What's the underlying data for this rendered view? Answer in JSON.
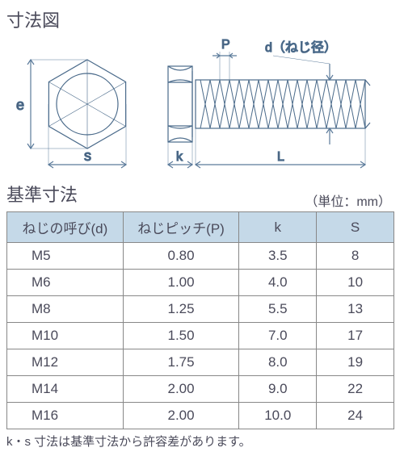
{
  "titles": {
    "diagram": "寸法図",
    "table": "基準寸法",
    "unit": "（単位：mm）",
    "footnote": "k・s 寸法は基準寸法から許容差があります。"
  },
  "diagram": {
    "labels": {
      "e": "e",
      "s": "s",
      "k": "k",
      "L": "L",
      "P": "P",
      "d": "d（ねじ径）"
    },
    "style": {
      "stroke": "#4a6a8a",
      "stroke_width": 1.2,
      "dim_stroke": "#5a7a9a",
      "fill": "none"
    }
  },
  "table": {
    "columns": [
      "ねじの呼び(d)",
      "ねじピッチ(P)",
      "k",
      "S"
    ],
    "rows": [
      [
        "M5",
        "0.80",
        "3.5",
        "8"
      ],
      [
        "M6",
        "1.00",
        "4.0",
        "10"
      ],
      [
        "M8",
        "1.25",
        "5.5",
        "13"
      ],
      [
        "M10",
        "1.50",
        "7.0",
        "17"
      ],
      [
        "M12",
        "1.75",
        "8.0",
        "19"
      ],
      [
        "M14",
        "2.00",
        "9.0",
        "22"
      ],
      [
        "M16",
        "2.00",
        "10.0",
        "24"
      ]
    ]
  }
}
